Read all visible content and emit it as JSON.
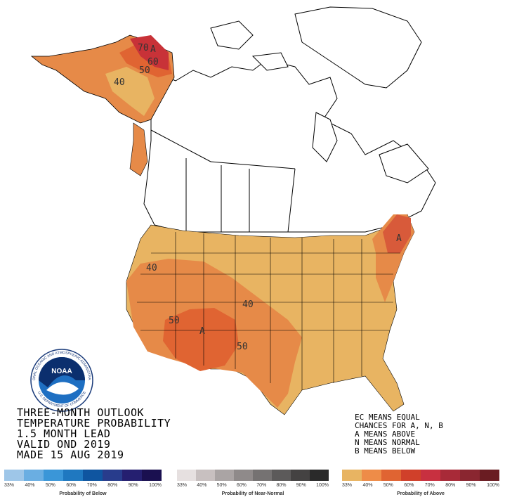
{
  "title_lines": [
    "THREE-MONTH OUTLOOK",
    "TEMPERATURE PROBABILITY",
    "1.5 MONTH LEAD",
    "VALID OND 2019",
    "MADE 15 AUG 2019"
  ],
  "legend_note_lines": [
    "EC MEANS EQUAL",
    "CHANCES FOR A, N, B",
    "A MEANS ABOVE",
    "N MEANS NORMAL",
    "B MEANS BELOW"
  ],
  "map_labels": {
    "alaska_70": "70",
    "alaska_a": "A",
    "alaska_60": "60",
    "alaska_50": "50",
    "alaska_40": "40",
    "west_40": "40",
    "central_40": "40",
    "sw_50_left": "50",
    "sw_a": "A",
    "sw_50_right": "50",
    "ne_a": "A"
  },
  "noaa_logo": {
    "center_text": "NOAA",
    "ring_top": "NATIONAL OCEANIC AND ATMOSPHERIC ADMINISTRATION",
    "ring_bottom": "U.S. DEPARTMENT OF COMMERCE"
  },
  "scales": {
    "below": {
      "caption": "Probability of Below",
      "ticks": [
        "33%",
        "40%",
        "50%",
        "60%",
        "70%",
        "80%",
        "90%",
        "100%"
      ],
      "colors": [
        "#9ec6e8",
        "#6aaee2",
        "#3a96d8",
        "#1f78c0",
        "#0f55a0",
        "#283c8c",
        "#251f70",
        "#1a1050"
      ]
    },
    "normal": {
      "caption": "Probability of Near-Normal",
      "ticks": [
        "33%",
        "40%",
        "50%",
        "60%",
        "70%",
        "80%",
        "90%",
        "100%"
      ],
      "colors": [
        "#e6e0e0",
        "#c8c0c0",
        "#aaa4a4",
        "#8f8a8a",
        "#757272",
        "#5c5a5a",
        "#444242",
        "#2a2a2a"
      ]
    },
    "above": {
      "caption": "Probability of Above",
      "ticks": [
        "33%",
        "40%",
        "50%",
        "60%",
        "70%",
        "80%",
        "90%",
        "100%"
      ],
      "colors": [
        "#e8b462",
        "#ee8c48",
        "#e06432",
        "#d0402a",
        "#c83040",
        "#a82a38",
        "#8a2630",
        "#6a1c22"
      ]
    }
  },
  "colors": {
    "prob_40": "#e8b462",
    "prob_50": "#e68a48",
    "prob_60": "#e06432",
    "prob_70": "#c83238",
    "ne_deep": "#d85a3a"
  }
}
